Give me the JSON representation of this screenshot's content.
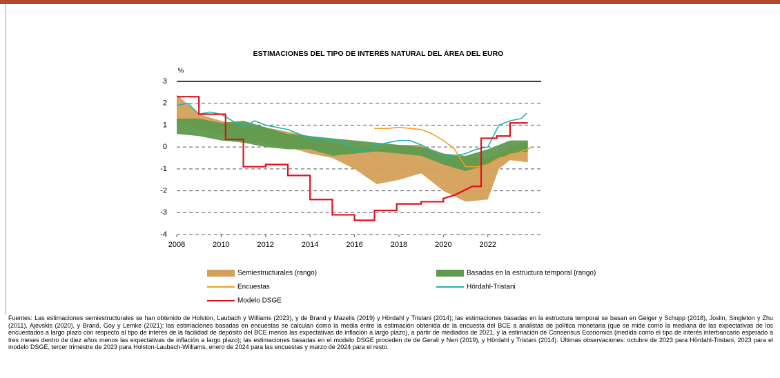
{
  "chart_data": {
    "type": "line",
    "title": "ESTIMACIONES DEL TIPO DE INTERÉS NATURAL DEL ÁREA DEL EURO",
    "ylabel": "%",
    "xlim": [
      2008,
      2024.4
    ],
    "ylim": [
      -4,
      3
    ],
    "xticks": [
      2008,
      2010,
      2012,
      2014,
      2016,
      2018,
      2020,
      2022
    ],
    "yticks": [
      -4,
      -3,
      -2,
      -1,
      0,
      1,
      2,
      3
    ],
    "grid": true,
    "legend": "bottom",
    "series": [
      {
        "name": "Semiestructurales (rango)",
        "color": "#d4a05a",
        "kind": "band",
        "x": [
          2008,
          2009,
          2010,
          2011,
          2012,
          2013,
          2014,
          2015,
          2016,
          2017,
          2018,
          2019,
          2020,
          2021,
          2022,
          2022.5,
          2023,
          2023.8
        ],
        "low": [
          1.2,
          0.8,
          0.6,
          0.2,
          0.2,
          0.0,
          -0.3,
          -0.5,
          -1.0,
          -1.7,
          -1.5,
          -1.2,
          -2.0,
          -2.5,
          -2.4,
          -1.0,
          -0.6,
          -0.7
        ],
        "high": [
          2.4,
          1.5,
          1.2,
          1.0,
          0.9,
          0.7,
          0.5,
          0.2,
          0.0,
          -0.1,
          0.1,
          0.1,
          -0.3,
          -0.5,
          -0.5,
          -0.3,
          0.0,
          0.3
        ]
      },
      {
        "name": "Basadas en la estructura temporal (rango)",
        "color": "#5f9a4e",
        "kind": "band",
        "x": [
          2008,
          2009,
          2010,
          2011,
          2012,
          2013,
          2014,
          2015,
          2016,
          2017,
          2018,
          2019,
          2020,
          2021,
          2022,
          2023,
          2023.8
        ],
        "low": [
          0.6,
          0.5,
          0.3,
          0.2,
          0.0,
          -0.1,
          -0.1,
          -0.4,
          -0.3,
          -0.2,
          -0.3,
          -0.4,
          -0.8,
          -1.1,
          -0.8,
          -0.3,
          -0.2
        ],
        "high": [
          1.3,
          1.3,
          1.1,
          1.2,
          0.9,
          0.6,
          0.5,
          0.4,
          0.3,
          0.2,
          0.1,
          0.0,
          -0.3,
          -0.4,
          -0.1,
          0.3,
          0.3
        ]
      },
      {
        "name": "Encuestas",
        "color": "#f0a020",
        "kind": "line",
        "x": [
          2016.9,
          2017.5,
          2018,
          2019,
          2019.5,
          2020,
          2020.5,
          2021,
          2021.5,
          2022,
          2022.5,
          2023,
          2023.5,
          2024
        ],
        "values": [
          0.85,
          0.85,
          0.9,
          0.8,
          0.6,
          0.3,
          -0.1,
          -0.9,
          -0.9,
          -0.8,
          -0.5,
          -0.4,
          -0.2,
          0.0
        ]
      },
      {
        "name": "Hördahl-Tristani",
        "color": "#20b2aa",
        "kind": "line",
        "x": [
          2008,
          2008.5,
          2009,
          2009.5,
          2010,
          2010.5,
          2011,
          2011.5,
          2012,
          2012.5,
          2013,
          2013.5,
          2014,
          2014.5,
          2015,
          2015.5,
          2016,
          2016.5,
          2017,
          2017.5,
          2018,
          2018.5,
          2019,
          2019.5,
          2020,
          2020.5,
          2021,
          2021.5,
          2022,
          2022.5,
          2023,
          2023.5,
          2023.75
        ],
        "values": [
          1.9,
          2.0,
          1.5,
          1.6,
          1.5,
          1.2,
          0.9,
          1.2,
          1.0,
          0.9,
          0.8,
          0.6,
          0.4,
          0.4,
          0.3,
          0.2,
          -0.1,
          -0.2,
          0.1,
          0.2,
          0.3,
          0.3,
          0.1,
          -0.2,
          -0.5,
          -0.4,
          -0.3,
          -0.1,
          0.0,
          1.0,
          1.2,
          1.3,
          1.55
        ]
      },
      {
        "name": "Modelo DSGE",
        "color": "#e0101a",
        "kind": "line",
        "x": [
          2008,
          2009,
          2009,
          2010.2,
          2010.2,
          2011,
          2011,
          2012,
          2012,
          2013,
          2013,
          2014,
          2014,
          2015,
          2015,
          2016,
          2016,
          2016.9,
          2016.9,
          2017.9,
          2017.9,
          2019,
          2019,
          2020,
          2020,
          2020.5,
          2021.3,
          2021.7,
          2021.7,
          2022.4,
          2022.4,
          2023,
          2023,
          2023.8
        ],
        "values": [
          2.3,
          2.3,
          1.5,
          1.5,
          0.35,
          0.35,
          -0.9,
          -0.9,
          -0.8,
          -0.8,
          -1.3,
          -1.3,
          -2.4,
          -2.4,
          -3.1,
          -3.1,
          -3.35,
          -3.35,
          -2.9,
          -2.9,
          -2.6,
          -2.6,
          -2.5,
          -2.5,
          -2.35,
          -2.2,
          -1.8,
          -1.8,
          0.4,
          0.4,
          0.5,
          0.5,
          1.1,
          1.1
        ]
      }
    ]
  },
  "footnote": "Fuentes: Las estimaciones semiestructurales se han obtenido de Holston, Laubach y Williams (2023), y de Brand y Mazelis (2019) y Hördahl y Tristani (2014); las estimaciones basadas en la estructura temporal se basan en Geiger y Schupp (2018), Joslin, Singleton y Zhu (2011), Ajevskis (2020), y Brand, Goy y Lemke (2021); las estimaciones basadas en encuestas se calculan como la media entre la estimación obtenida de la encuesta del BCE a analistas de política monetaria (que se mide como la mediana de las expectativas de los encuestados a largo plazo con respecto al tipo de interés de la facilidad de depósito del BCE menos las expectativas de inflación a largo plazo), a partir de mediados de 2021, y la estimación de Consensus Economics (medida como el tipo de interés interbancario esperado a tres meses dentro de diez años menos las expectativas de inflación a largo plazo); las estimaciones basadas en el modelo DSGE proceden de de Gerali y Neri (2019), y Hördahl y Tristani (2014). Últimas observaciones: octubre de 2023 para Hördahl-Tristani, 2023 para el modelo DSGE, tercer trimestre de 2023 para Holston-Laubach-Williams, enero de 2024 para las encuestas y marzo de 2024 para el resto."
}
